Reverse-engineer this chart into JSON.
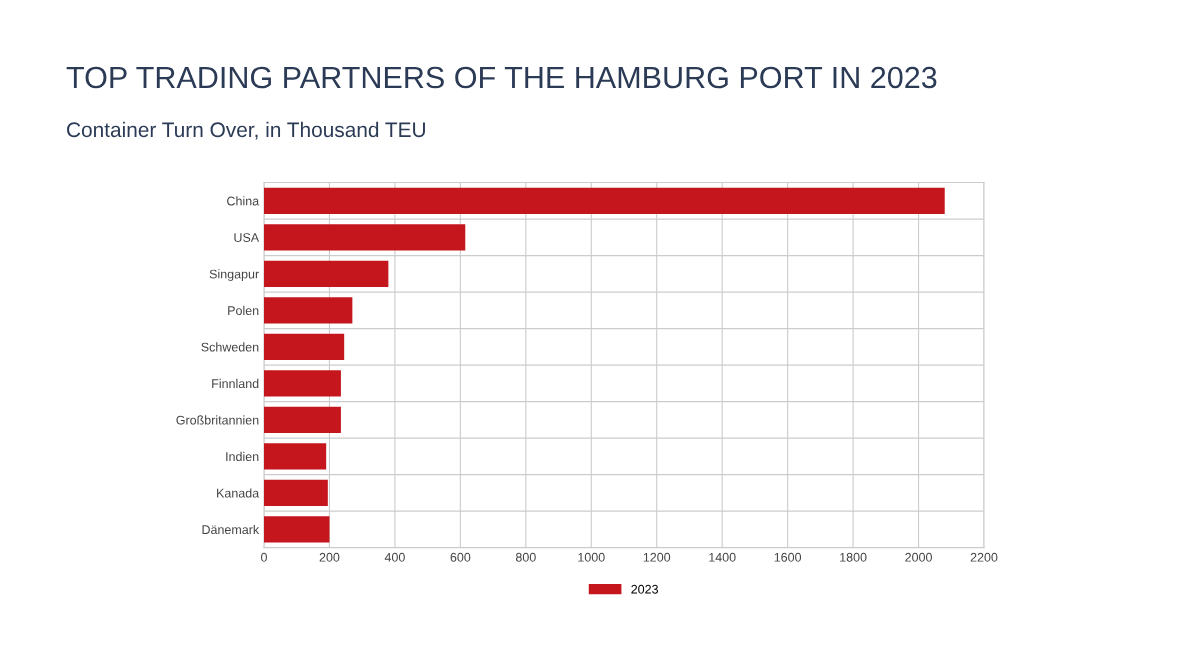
{
  "chart_data": {
    "type": "bar",
    "orientation": "horizontal",
    "title": "TOP TRADING PARTNERS OF THE HAMBURG PORT IN 2023",
    "subtitle": "Container Turn Over, in Thousand TEU",
    "categories": [
      "China",
      "USA",
      "Singapur",
      "Polen",
      "Schweden",
      "Finnland",
      "Großbritannien",
      "Indien",
      "Kanada",
      "Dänemark"
    ],
    "series": [
      {
        "name": "2023",
        "color": "#c4161c",
        "values": [
          2080,
          615,
          380,
          270,
          245,
          235,
          235,
          190,
          195,
          200
        ]
      }
    ],
    "xlim": [
      0,
      2200
    ],
    "xticks": [
      0,
      200,
      400,
      600,
      800,
      1000,
      1200,
      1400,
      1600,
      1800,
      2000,
      2200
    ],
    "grid": true,
    "legend": "bottom"
  }
}
